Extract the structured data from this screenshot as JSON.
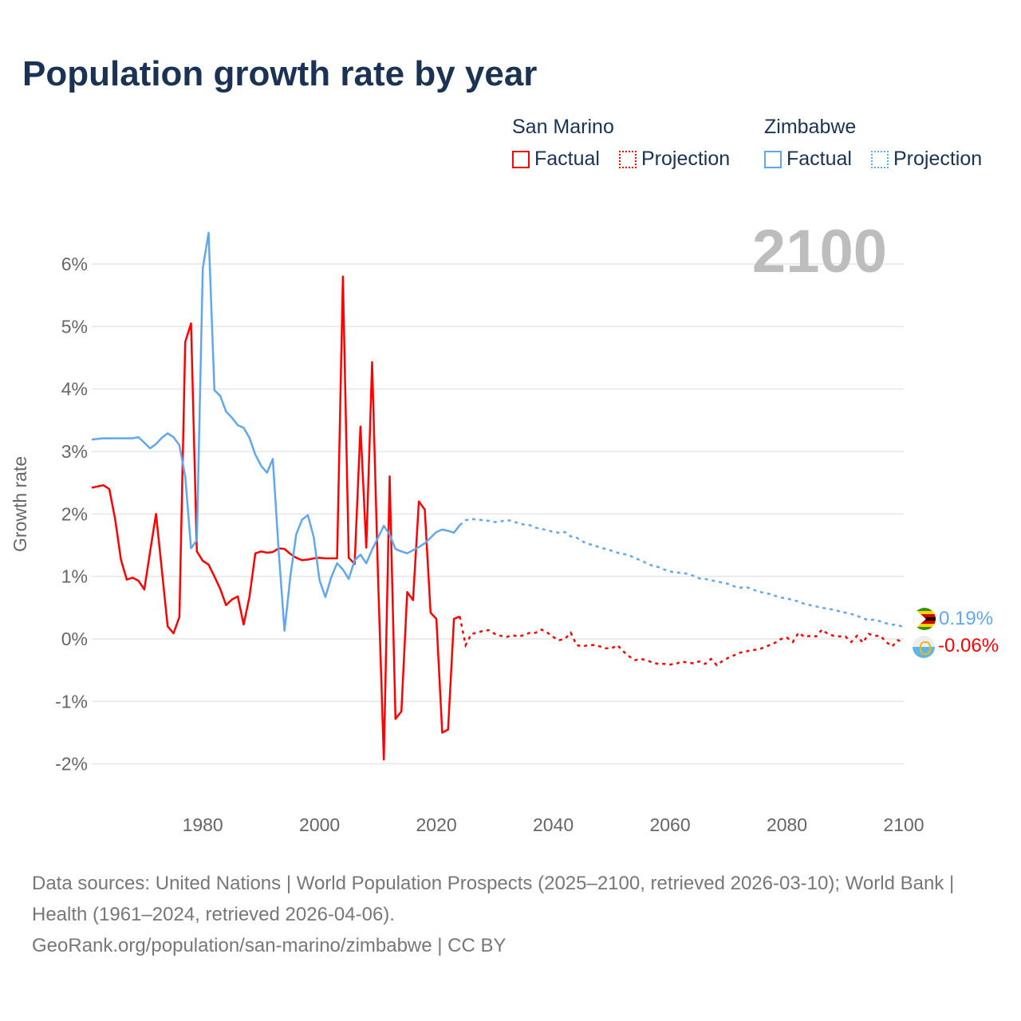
{
  "chart_data": {
    "type": "line",
    "title": "Population growth rate by year",
    "ylabel": "Growth rate",
    "xlabel": "",
    "xlim": [
      1961,
      2100
    ],
    "ylim": [
      -2.5,
      6.5
    ],
    "x_ticks": [
      "1980",
      "2000",
      "2020",
      "2040",
      "2060",
      "2080",
      "2100"
    ],
    "y_ticks": [
      "6%",
      "5%",
      "4%",
      "3%",
      "2%",
      "1%",
      "0%",
      "-1%",
      "-2%"
    ],
    "grid": true,
    "current_year_label": "2100",
    "legend": {
      "placement": "top-right",
      "groups": [
        {
          "name": "San Marino",
          "factual": "Factual",
          "projection": "Projection"
        },
        {
          "name": "Zimbabwe",
          "factual": "Factual",
          "projection": "Projection"
        }
      ]
    },
    "series": [
      {
        "name": "San Marino",
        "color": "#ff0000",
        "end_label": "-0.06%",
        "factual_start": 1961,
        "factual": [
          2.42,
          2.44,
          2.46,
          2.4,
          1.92,
          1.27,
          0.95,
          0.98,
          0.93,
          0.79,
          1.4,
          2.0,
          1.1,
          0.2,
          0.09,
          0.35,
          4.75,
          5.05,
          1.4,
          1.25,
          1.19,
          1.0,
          0.8,
          0.54,
          0.63,
          0.68,
          0.23,
          0.67,
          1.37,
          1.4,
          1.38,
          1.39,
          1.45,
          1.44,
          1.36,
          1.3,
          1.26,
          1.27,
          1.29,
          1.3,
          1.29,
          1.29,
          1.29,
          5.8,
          1.3,
          1.2,
          3.4,
          1.46,
          4.43,
          1.0,
          -1.93,
          2.6,
          -1.28,
          -1.16,
          0.75,
          0.62,
          2.2,
          2.07,
          0.42,
          0.32,
          -1.5,
          -1.45,
          0.32,
          0.36
        ],
        "projection_start": 2024,
        "projection": [
          0.36,
          -0.1,
          0.08,
          0.1,
          0.13,
          0.14,
          0.08,
          0.05,
          0.03,
          0.06,
          0.04,
          0.06,
          0.1,
          0.1,
          0.15,
          0.1,
          0.03,
          -0.02,
          0.0,
          0.1,
          -0.1,
          -0.12,
          -0.1,
          -0.1,
          -0.12,
          -0.15,
          -0.15,
          -0.1,
          -0.2,
          -0.28,
          -0.34,
          -0.32,
          -0.34,
          -0.38,
          -0.4,
          -0.4,
          -0.41,
          -0.4,
          -0.36,
          -0.38,
          -0.39,
          -0.36,
          -0.4,
          -0.32,
          -0.42,
          -0.35,
          -0.3,
          -0.26,
          -0.22,
          -0.2,
          -0.18,
          -0.17,
          -0.14,
          -0.1,
          -0.06,
          0.0,
          0.02,
          -0.05,
          0.1,
          0.03,
          0.05,
          0.04,
          0.15,
          0.08,
          0.05,
          0.04,
          0.04,
          -0.05,
          0.05,
          -0.06,
          0.08,
          0.05,
          0.05,
          -0.05,
          -0.12,
          -0.02,
          -0.06
        ]
      },
      {
        "name": "Zimbabwe",
        "color": "#5fa8ef",
        "end_label": "0.19%",
        "factual_start": 1961,
        "factual": [
          3.19,
          3.2,
          3.21,
          3.21,
          3.21,
          3.21,
          3.21,
          3.21,
          3.23,
          3.14,
          3.05,
          3.12,
          3.22,
          3.29,
          3.23,
          3.1,
          2.6,
          1.45,
          1.58,
          5.93,
          6.5,
          3.98,
          3.89,
          3.64,
          3.54,
          3.42,
          3.38,
          3.22,
          2.95,
          2.77,
          2.66,
          2.88,
          1.4,
          0.13,
          1.0,
          1.67,
          1.91,
          1.98,
          1.63,
          0.94,
          0.67,
          0.99,
          1.21,
          1.11,
          0.96,
          1.26,
          1.35,
          1.21,
          1.43,
          1.62,
          1.81,
          1.67,
          1.44,
          1.4,
          1.37,
          1.42,
          1.47,
          1.53,
          1.62,
          1.71,
          1.75,
          1.73,
          1.7,
          1.82
        ],
        "projection_start": 2024,
        "projection": [
          1.82,
          1.9,
          1.92,
          1.91,
          1.9,
          1.89,
          1.87,
          1.88,
          1.9,
          1.89,
          1.85,
          1.83,
          1.82,
          1.78,
          1.76,
          1.74,
          1.71,
          1.7,
          1.71,
          1.64,
          1.62,
          1.56,
          1.52,
          1.5,
          1.46,
          1.44,
          1.41,
          1.38,
          1.36,
          1.34,
          1.29,
          1.26,
          1.21,
          1.17,
          1.15,
          1.11,
          1.08,
          1.06,
          1.06,
          1.04,
          1.01,
          0.97,
          0.96,
          0.94,
          0.92,
          0.9,
          0.88,
          0.84,
          0.82,
          0.83,
          0.8,
          0.76,
          0.74,
          0.72,
          0.69,
          0.66,
          0.65,
          0.62,
          0.6,
          0.56,
          0.54,
          0.52,
          0.5,
          0.48,
          0.47,
          0.44,
          0.42,
          0.4,
          0.37,
          0.33,
          0.3,
          0.31,
          0.28,
          0.25,
          0.23,
          0.22,
          0.19
        ]
      }
    ]
  },
  "footer": {
    "sources": "Data sources: United Nations | World Population Prospects (2025–2100, retrieved 2026-03-10); World Bank | Health (1961–2024, retrieved 2026-04-06).",
    "url": "GeoRank.org/population/san-marino/zimbabwe | CC BY"
  }
}
